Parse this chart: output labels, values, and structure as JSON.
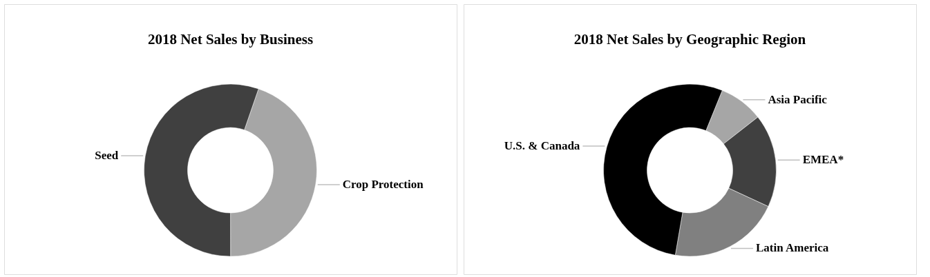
{
  "chart_data": [
    {
      "type": "donut",
      "title": "2018 Net Sales by Business",
      "categories": [
        "Crop Protection",
        "Seed"
      ],
      "values": [
        44.7,
        55.3
      ],
      "colors": [
        "#a6a6a6",
        "#404040"
      ]
    },
    {
      "type": "donut",
      "title": "2018 Net Sales by Geographic Region",
      "categories": [
        "Asia Pacific",
        "EMEA*",
        "Latin America",
        "U.S. & Canada"
      ],
      "values": [
        8.3,
        17.5,
        20.8,
        53.4
      ],
      "colors": [
        "#a6a6a6",
        "#404040",
        "#808080",
        "#000000"
      ]
    }
  ]
}
